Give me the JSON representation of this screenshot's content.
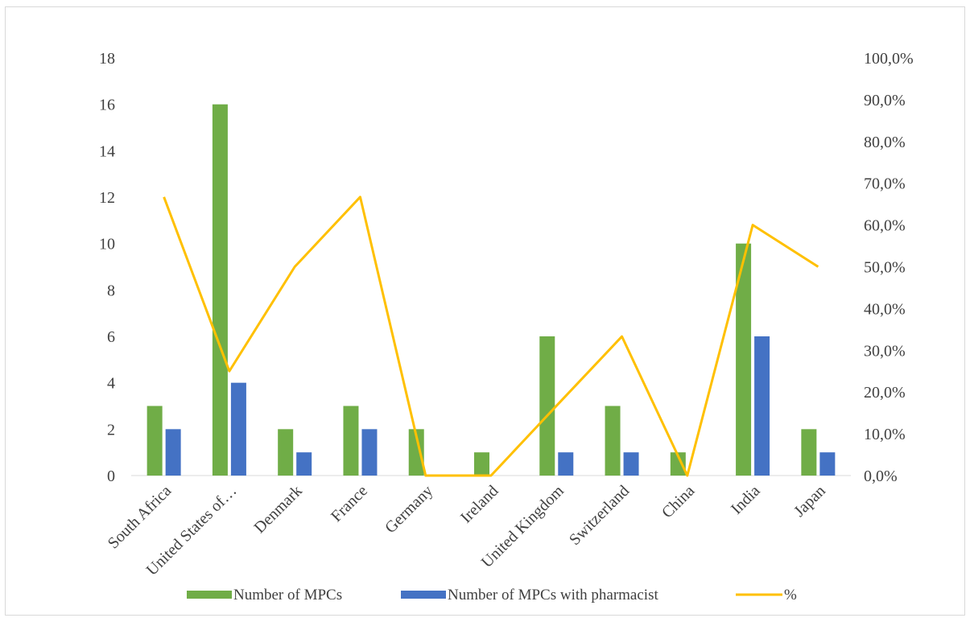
{
  "chart_data": {
    "type": "bar",
    "categories": [
      "South Africa",
      "United States of…",
      "Denmark",
      "France",
      "Germany",
      "Ireland",
      "United Kingdom",
      "Switzerland",
      "China",
      "India",
      "Japan"
    ],
    "series": [
      {
        "name": "Number of MPCs",
        "type": "bar",
        "axis": "left",
        "color": "#70ad47",
        "values": [
          3,
          16,
          2,
          3,
          2,
          1,
          6,
          3,
          1,
          10,
          2
        ]
      },
      {
        "name": "Number of MPCs with pharmacist",
        "type": "bar",
        "axis": "left",
        "color": "#4472c4",
        "values": [
          2,
          4,
          1,
          2,
          0,
          0,
          1,
          1,
          0,
          6,
          1
        ]
      },
      {
        "name": "%",
        "type": "line",
        "axis": "right",
        "color": "#ffc000",
        "values": [
          66.7,
          25.0,
          50.0,
          66.7,
          0.0,
          0.0,
          16.7,
          33.3,
          0.0,
          60.0,
          50.0
        ]
      }
    ],
    "ylim": [
      0,
      18
    ],
    "yticks": [
      "0",
      "2",
      "4",
      "6",
      "8",
      "10",
      "12",
      "14",
      "16",
      "18"
    ],
    "y2lim": [
      0,
      100
    ],
    "y2ticks": [
      "0,0%",
      "10,0%",
      "20,0%",
      "30,0%",
      "40,0%",
      "50,0%",
      "60,0%",
      "70,0%",
      "80,0%",
      "90,0%",
      "100,0%"
    ],
    "grid": false,
    "legend_position": "bottom"
  }
}
